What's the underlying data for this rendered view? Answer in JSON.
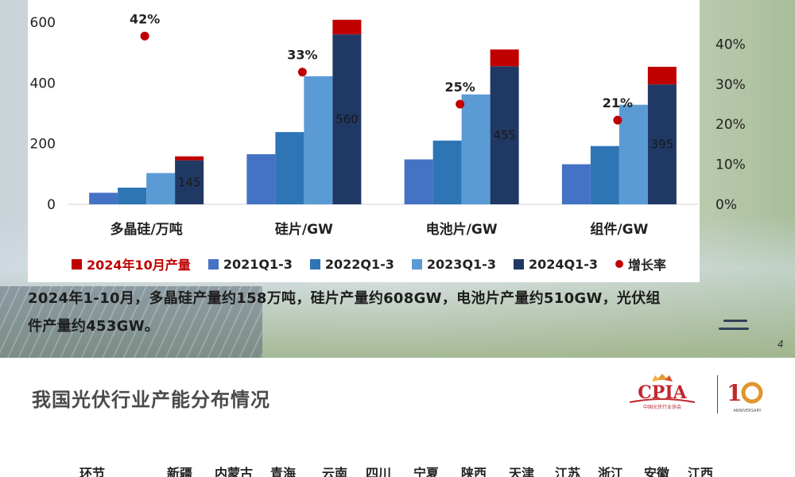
{
  "chart_data": {
    "type": "bar",
    "categories": [
      "多晶硅/万吨",
      "硅片/GW",
      "电池片/GW",
      "组件/GW"
    ],
    "series": [
      {
        "name": "2021Q1-3",
        "color": "#4472c4",
        "values": [
          38,
          165,
          148,
          132
        ]
      },
      {
        "name": "2022Q1-3",
        "color": "#2e75b6",
        "values": [
          55,
          238,
          210,
          192
        ]
      },
      {
        "name": "2023Q1-3",
        "color": "#5b9bd5",
        "values": [
          103,
          422,
          362,
          328
        ]
      },
      {
        "name": "2024Q1-3",
        "color": "#203864",
        "values": [
          145,
          560,
          455,
          395
        ]
      },
      {
        "name": "2024年10月产量",
        "color": "#c00000",
        "values": [
          13,
          48,
          55,
          58
        ]
      }
    ],
    "stacked_on": "2024Q1-3",
    "value_labels": [
      "145",
      "560",
      "455",
      "395"
    ],
    "growth_rate": {
      "name": "增长率",
      "color": "#c00000",
      "values": [
        42,
        33,
        25,
        21
      ],
      "labels": [
        "42%",
        "33%",
        "25%",
        "21%"
      ]
    },
    "y_left": {
      "ticks": [
        "0",
        "200",
        "400",
        "600"
      ],
      "ylim": [
        0,
        660
      ]
    },
    "y_right": {
      "ticks": [
        "0%",
        "10%",
        "20%",
        "30%",
        "40%"
      ],
      "ylim": [
        0,
        50
      ]
    },
    "legend_order": [
      "2024年10月产量",
      "2021Q1-3",
      "2022Q1-3",
      "2023Q1-3",
      "2024Q1-3",
      "增长率"
    ],
    "legend_position": "bottom"
  },
  "summary": {
    "line1": "2024年1-10月，多晶硅产量约158万吨，硅片产量约608GW，电池片产量约510GW，光伏组",
    "line2": "件产量约453GW。"
  },
  "page_number": "4",
  "slide2": {
    "title": "我国光伏行业产能分布情况",
    "logo_text": "CPIA",
    "logo_subtitle": "中国光伏行业协会",
    "anniversary_text": "ANNIVERSARY",
    "provinces": [
      "环节",
      "新疆",
      "内蒙古",
      "青海",
      "云南",
      "四川",
      "宁夏",
      "陕西",
      "天津",
      "江苏",
      "浙江",
      "安徽",
      "江西"
    ]
  }
}
